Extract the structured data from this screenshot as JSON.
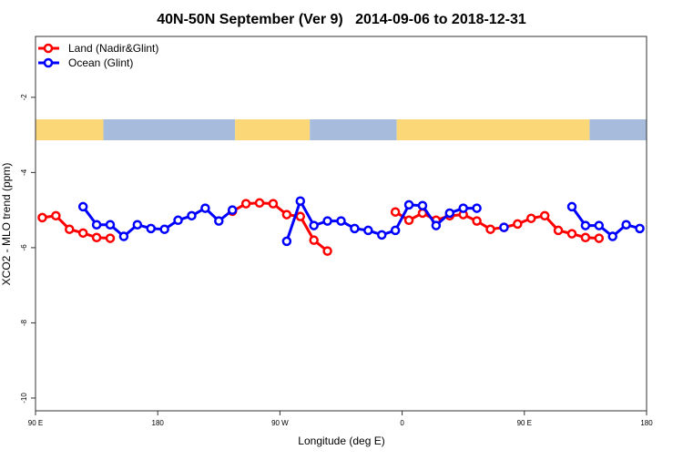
{
  "chart_data": {
    "type": "line",
    "title": "40N-50N September (Ver 9)   2014-09-06 to 2018-12-31",
    "xlabel": "Longitude (deg E)",
    "ylabel": "XCO2 - MLO trend (ppm)",
    "xlim": [
      90,
      540
    ],
    "ylim": [
      -10.34,
      -0.38
    ],
    "x_ticks": [
      {
        "value": 90,
        "label": "90 E"
      },
      {
        "value": 180,
        "label": "180"
      },
      {
        "value": 270,
        "label": "90 W"
      },
      {
        "value": 360,
        "label": "0"
      },
      {
        "value": 450,
        "label": "90 E"
      },
      {
        "value": 540,
        "label": "180"
      }
    ],
    "y_ticks": [
      {
        "value": -2,
        "label": "-2"
      },
      {
        "value": -4,
        "label": "-4"
      },
      {
        "value": -6,
        "label": "-6"
      },
      {
        "value": -8,
        "label": "-8"
      },
      {
        "value": -10,
        "label": "-10"
      }
    ],
    "grid": false,
    "legend_position": "top-left",
    "series": [
      {
        "name": "Land (Nadir&Glint)",
        "color": "#ff0000",
        "x": [
          95,
          105,
          115,
          125,
          135,
          145,
          null,
          235,
          245,
          255,
          265,
          275,
          285,
          295,
          305,
          null,
          355,
          365,
          375,
          385,
          395,
          405,
          415,
          425,
          435,
          445,
          455,
          465,
          475,
          485,
          495,
          505
        ],
        "y": [
          -5.2,
          -5.15,
          -5.51,
          -5.61,
          -5.73,
          -5.75,
          null,
          -5.03,
          -4.83,
          -4.81,
          -4.83,
          -5.12,
          -5.17,
          -5.8,
          -6.09,
          null,
          -5.05,
          -5.27,
          -5.08,
          -5.27,
          -5.15,
          -5.12,
          -5.29,
          -5.51,
          -5.46,
          -5.37,
          -5.22,
          -5.15,
          -5.54,
          -5.63,
          -5.73,
          -5.75
        ]
      },
      {
        "name": "Ocean (Glint)",
        "color": "#0000ff",
        "x": [
          125,
          135,
          145,
          155,
          165,
          175,
          185,
          195,
          205,
          215,
          225,
          235,
          null,
          275,
          285,
          295,
          305,
          315,
          325,
          335,
          345,
          355,
          365,
          375,
          385,
          395,
          405,
          415,
          null,
          435,
          null,
          485,
          495,
          505,
          515,
          525,
          535
        ],
        "y": [
          -4.91,
          -5.39,
          -5.39,
          -5.7,
          -5.39,
          -5.49,
          -5.51,
          -5.27,
          -5.15,
          -4.95,
          -5.29,
          -5.0,
          null,
          -5.83,
          -4.76,
          -5.41,
          -5.29,
          -5.29,
          -5.49,
          -5.54,
          -5.66,
          -5.54,
          -4.86,
          -4.88,
          -5.41,
          -5.08,
          -4.95,
          -4.95,
          null,
          -5.46,
          null,
          -4.91,
          -5.41,
          -5.41,
          -5.7,
          -5.39,
          -5.49
        ]
      }
    ],
    "map_colors": {
      "land": "#fcd777",
      "ocean": "#a7bcdc"
    }
  }
}
